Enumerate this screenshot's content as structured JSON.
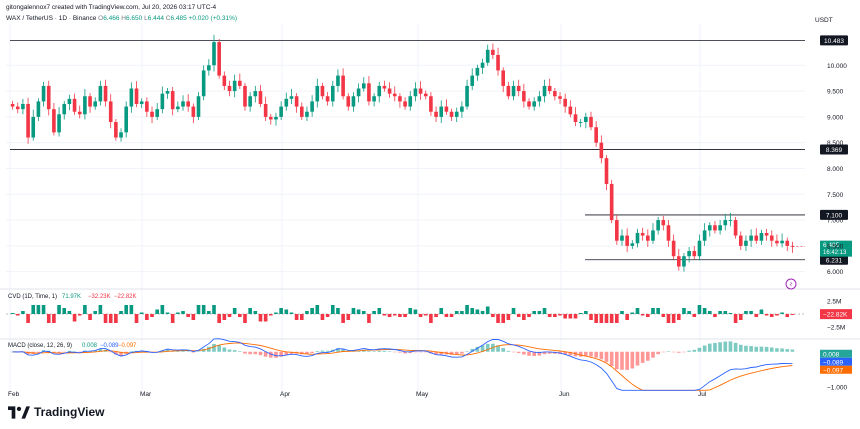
{
  "header": {
    "author_line": "gitongalennox7 created with TradingView.com, Jul 20, 2026 03:17 UTC-4",
    "symbol_line": "WAX / TetherUS · 1D · Binance",
    "ohlc": {
      "o_label": "O",
      "o": "6.466",
      "h_label": "H",
      "h": "6.650",
      "l_label": "L",
      "l": "6.444",
      "c_label": "C",
      "c": "6.485",
      "change": "+0.020 (+0.31%)"
    }
  },
  "currency_label": "USDT",
  "cvd_legend": {
    "name": "CVD (1D, Time, 1)",
    "v1": "71.97K",
    "v2": "−32.23K",
    "v3": "−22.82K"
  },
  "macd_legend": {
    "name": "MACD (close, 12, 26, 9)",
    "v1": "0.008",
    "v2": "−0.089",
    "v3": "−0.097"
  },
  "brand": "TradingView",
  "colors": {
    "up": "#089981",
    "down": "#f23645",
    "macd_line": "#2962ff",
    "signal_line": "#ff6d00",
    "grid": "#f0f3fa"
  },
  "chart_data": {
    "type": "candlestick",
    "symbol": "WAX/USDT",
    "interval": "1D",
    "y_ticks": [
      "10.000",
      "9.500",
      "9.000",
      "8.500",
      "8.000",
      "7.500",
      "7.000",
      "6.500",
      "6.000"
    ],
    "ylim": [
      5.8,
      10.8
    ],
    "x_labels": [
      "Feb",
      "Mar",
      "Apr",
      "May",
      "Jun",
      "Jul"
    ],
    "horizontal_levels": [
      {
        "label": "10.483",
        "value": 10.483
      },
      {
        "label": "8.369",
        "value": 8.369
      },
      {
        "label": "7.100",
        "value": 7.1
      },
      {
        "label": "6.231",
        "value": 6.231
      }
    ],
    "last_price": {
      "label": "6.485",
      "value": 6.485,
      "countdown": "16:42:13"
    },
    "close_series": [
      9.2,
      9.15,
      9.25,
      8.6,
      9.0,
      9.3,
      9.6,
      9.15,
      8.7,
      9.05,
      9.25,
      9.35,
      9.1,
      9.05,
      9.4,
      9.2,
      9.3,
      9.6,
      9.3,
      8.9,
      8.6,
      8.7,
      9.2,
      9.55,
      9.25,
      9.3,
      9.1,
      9.0,
      9.15,
      9.45,
      9.5,
      9.15,
      9.2,
      9.3,
      9.2,
      9.0,
      9.4,
      9.9,
      10.0,
      10.45,
      9.8,
      9.6,
      9.5,
      9.7,
      9.6,
      9.2,
      9.4,
      9.5,
      9.25,
      9.0,
      8.95,
      9.0,
      9.2,
      9.35,
      9.4,
      9.2,
      9.0,
      9.1,
      9.3,
      9.6,
      9.4,
      9.3,
      9.6,
      9.8,
      9.4,
      9.2,
      9.4,
      9.55,
      9.65,
      9.3,
      9.4,
      9.6,
      9.55,
      9.45,
      9.4,
      9.3,
      9.2,
      9.4,
      9.55,
      9.45,
      9.4,
      9.1,
      9.0,
      9.2,
      9.1,
      9.0,
      9.1,
      9.2,
      9.6,
      9.8,
      9.95,
      10.05,
      10.3,
      10.2,
      9.9,
      9.6,
      9.4,
      9.6,
      9.5,
      9.3,
      9.2,
      9.3,
      9.4,
      9.6,
      9.5,
      9.4,
      9.35,
      9.2,
      9.05,
      8.9,
      8.9,
      9.0,
      8.8,
      8.5,
      8.2,
      7.7,
      7.0,
      6.6,
      6.7,
      6.5,
      6.55,
      6.75,
      6.7,
      6.6,
      6.8,
      7.0,
      6.9,
      6.6,
      6.3,
      6.1,
      6.3,
      6.4,
      6.3,
      6.6,
      6.8,
      6.9,
      6.8,
      6.9,
      7.0,
      7.0,
      6.7,
      6.5,
      6.6,
      6.7,
      6.6,
      6.75,
      6.7,
      6.6,
      6.55,
      6.6,
      6.5,
      6.485
    ],
    "cvd": {
      "ticks": [
        "2.5M",
        "−2.5M"
      ],
      "last": -22820,
      "ylim": [
        -4000000,
        4000000
      ]
    },
    "macd": {
      "ticks": [
        "0.000",
        "−1.000"
      ],
      "macd": -0.089,
      "signal": -0.097,
      "histogram": 0.008,
      "ylim": [
        -1.15,
        0.25
      ]
    }
  }
}
